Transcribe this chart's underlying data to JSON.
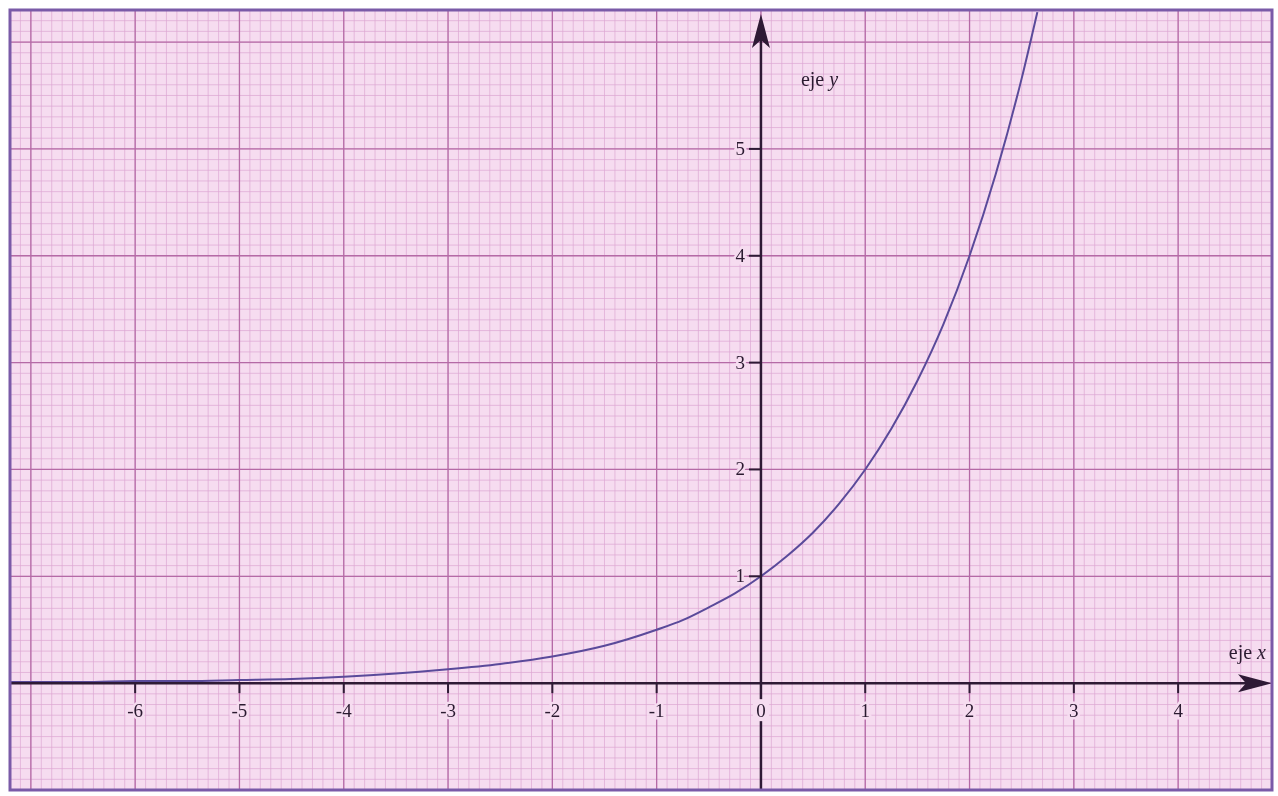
{
  "chart_data": {
    "type": "line",
    "xlabel": "eje x",
    "ylabel": "eje y",
    "xlim": [
      -7.2,
      4.9
    ],
    "ylim": [
      -1,
      6.3
    ],
    "xticks": [
      -6,
      -5,
      -4,
      -3,
      -2,
      -1,
      0,
      1,
      2,
      3,
      4
    ],
    "yticks": [
      1,
      2,
      3,
      4,
      5
    ],
    "grid": true,
    "line_style": "solid",
    "series": [
      {
        "color": "#5a4a9a",
        "x": [
          -7.2,
          -7,
          -6.5,
          -6,
          -5.5,
          -5,
          -4.5,
          -4,
          -3.5,
          -3,
          -2.5,
          -2,
          -1.5,
          -1,
          -0.75,
          -0.5,
          -0.25,
          0,
          0.25,
          0.5,
          0.75,
          1,
          1.25,
          1.5,
          1.75,
          2,
          2.25,
          2.5,
          2.65
        ],
        "values": [
          0.01,
          0.01,
          0.01,
          0.02,
          0.02,
          0.03,
          0.04,
          0.06,
          0.09,
          0.13,
          0.18,
          0.25,
          0.35,
          0.5,
          0.59,
          0.71,
          0.84,
          1,
          1.19,
          1.41,
          1.68,
          2,
          2.38,
          2.83,
          3.36,
          4,
          4.76,
          5.66,
          6.28
        ]
      }
    ]
  }
}
